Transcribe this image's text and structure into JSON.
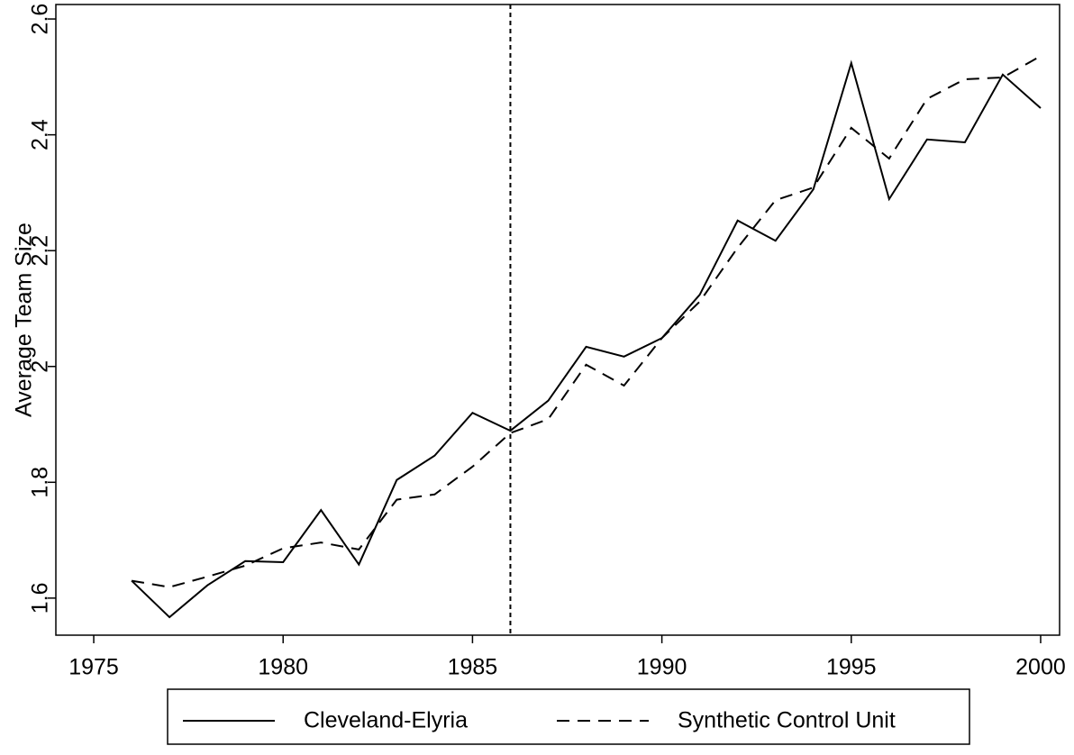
{
  "chart_data": {
    "type": "line",
    "y_label": "Average Team Size",
    "x": [
      1976,
      1977,
      1978,
      1979,
      1980,
      1981,
      1982,
      1983,
      1984,
      1985,
      1986,
      1987,
      1988,
      1989,
      1990,
      1991,
      1992,
      1993,
      1994,
      1995,
      1996,
      1997,
      1998,
      1999,
      2000
    ],
    "series": [
      {
        "name": "Cleveland-Elyria",
        "color": "#000000",
        "style": "solid",
        "values": [
          1.63,
          1.567,
          1.622,
          1.664,
          1.662,
          1.752,
          1.658,
          1.804,
          1.846,
          1.92,
          1.889,
          1.941,
          2.034,
          2.017,
          2.049,
          2.124,
          2.252,
          2.217,
          2.306,
          2.524,
          2.289,
          2.392,
          2.387,
          2.504,
          2.446
        ]
      },
      {
        "name": "Synthetic Control Unit",
        "color": "#000000",
        "style": "dashed",
        "values": [
          1.63,
          1.619,
          1.637,
          1.656,
          1.686,
          1.696,
          1.684,
          1.77,
          1.779,
          1.827,
          1.885,
          1.909,
          2.003,
          1.967,
          2.049,
          2.112,
          2.205,
          2.287,
          2.309,
          2.412,
          2.359,
          2.462,
          2.496,
          2.499,
          2.536
        ]
      }
    ],
    "vline_x": 1986,
    "xlim": [
      1974,
      2000.5
    ],
    "xticks": [
      1975,
      1980,
      1985,
      1990,
      1995,
      2000
    ],
    "ylim": [
      1.536,
      2.625
    ],
    "yticks": [
      1.6,
      1.8,
      2,
      2.2,
      2.4,
      2.6
    ],
    "legend": "bottom"
  }
}
